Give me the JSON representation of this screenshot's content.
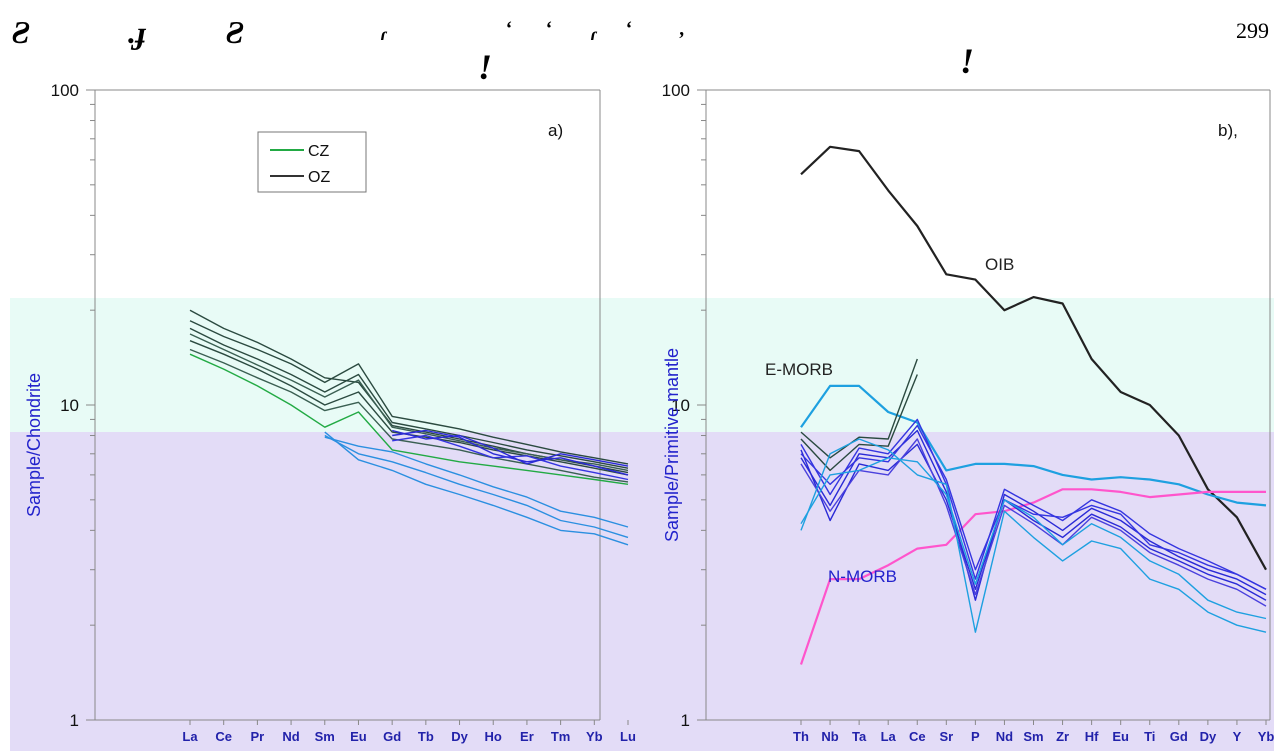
{
  "header": {
    "page_number": "299",
    "marks": [
      "Ƨ",
      ".ɟ",
      "Ƨ",
      "ɾ",
      "ʻ",
      "ʻ",
      "ɾ",
      "ʻ",
      ",",
      "ǃ",
      "ǃ"
    ]
  },
  "bands": {
    "cyan": "#e8fbf6",
    "lilac": "#e3dcf7"
  },
  "chart_data": [
    {
      "panel_label": "a)",
      "type": "line",
      "scale": "log",
      "ylim": [
        1,
        100
      ],
      "ytick_labels": [
        "100",
        "10",
        "1"
      ],
      "ylabel": "Sample/Chondrite",
      "categories": [
        "La",
        "Ce",
        "Pr",
        "Nd",
        "Sm",
        "Eu",
        "Gd",
        "Tb",
        "Dy",
        "Ho",
        "Er",
        "Tm",
        "Yb",
        "Lu"
      ],
      "legend": [
        {
          "label": "CZ",
          "color": "#22aa44"
        },
        {
          "label": "OZ",
          "color": "#333333"
        }
      ],
      "series": [
        {
          "group": "CZ",
          "color": "#22aa44",
          "values": [
            14.5,
            13.0,
            11.5,
            10.0,
            8.5,
            9.5,
            7.2,
            6.9,
            6.6,
            6.4,
            6.2,
            6.0,
            5.8,
            5.6
          ]
        },
        {
          "group": "OZ",
          "color": "#2b4a40",
          "values": [
            16.0,
            14.5,
            13.0,
            11.5,
            10.0,
            11.0,
            8.2,
            7.9,
            7.6,
            7.2,
            6.9,
            6.6,
            6.3,
            6.0
          ]
        },
        {
          "group": "OZ",
          "color": "#2b4a40",
          "values": [
            17.5,
            15.5,
            14.0,
            12.5,
            11.0,
            12.5,
            8.8,
            8.4,
            8.0,
            7.6,
            7.2,
            6.9,
            6.6,
            6.3
          ]
        },
        {
          "group": "OZ",
          "color": "#2b4a40",
          "values": [
            18.5,
            16.5,
            15.0,
            13.5,
            11.8,
            13.5,
            9.2,
            8.8,
            8.4,
            7.9,
            7.5,
            7.1,
            6.8,
            6.5
          ]
        },
        {
          "group": "OZ",
          "color": "#2b4a40",
          "values": [
            20.0,
            17.5,
            15.8,
            14.0,
            12.2,
            11.8,
            8.6,
            8.2,
            7.8,
            7.4,
            7.0,
            6.7,
            6.4,
            6.1
          ]
        },
        {
          "group": "OZ",
          "color": "#3a5f52",
          "values": [
            15.0,
            13.6,
            12.2,
            11.0,
            9.6,
            10.2,
            7.8,
            7.5,
            7.2,
            6.8,
            6.5,
            6.2,
            5.9,
            5.7
          ]
        },
        {
          "group": "OZ",
          "color": "#3a5f52",
          "values": [
            16.8,
            15.0,
            13.4,
            12.0,
            10.6,
            12.0,
            8.5,
            8.1,
            7.7,
            7.3,
            7.0,
            6.7,
            6.5,
            6.2
          ]
        },
        {
          "group": "OZ",
          "color": "#2a2ad6",
          "values": [
            null,
            null,
            null,
            null,
            null,
            null,
            8.0,
            8.3,
            7.9,
            7.0,
            6.6,
            6.8,
            6.4,
            6.0
          ]
        },
        {
          "group": "OZ",
          "color": "#3535e0",
          "values": [
            null,
            null,
            null,
            null,
            null,
            null,
            7.7,
            8.0,
            7.4,
            6.8,
            6.9,
            6.4,
            6.1,
            5.8
          ]
        },
        {
          "group": "OZ",
          "color": "#2a2ad6",
          "values": [
            null,
            null,
            null,
            null,
            null,
            null,
            8.3,
            7.8,
            8.0,
            7.3,
            6.5,
            7.0,
            6.7,
            6.4
          ]
        },
        {
          "group": "OZ",
          "color": "#2b8fe0",
          "values": [
            null,
            null,
            null,
            null,
            7.9,
            7.4,
            7.1,
            6.5,
            6.0,
            5.5,
            5.1,
            4.6,
            4.4,
            4.1
          ]
        },
        {
          "group": "OZ",
          "color": "#2b8fe0",
          "values": [
            null,
            null,
            null,
            null,
            8.0,
            7.0,
            6.6,
            6.1,
            5.6,
            5.2,
            4.8,
            4.3,
            4.1,
            3.8
          ]
        },
        {
          "group": "OZ",
          "color": "#2b8fe0",
          "values": [
            null,
            null,
            null,
            null,
            8.2,
            6.7,
            6.2,
            5.6,
            5.2,
            4.8,
            4.4,
            4.0,
            3.9,
            3.6
          ]
        }
      ]
    },
    {
      "panel_label": "b),",
      "type": "line",
      "scale": "log",
      "ylim": [
        1,
        100
      ],
      "ytick_labels": [
        "100",
        "10",
        "1"
      ],
      "ylabel": "Sample/Primitive mantle",
      "categories": [
        "Th",
        "Nb",
        "Ta",
        "La",
        "Ce",
        "Sr",
        "P",
        "Nd",
        "Sm",
        "Zr",
        "Hf",
        "Eu",
        "Ti",
        "Gd",
        "Dy",
        "Y",
        "Yb"
      ],
      "annotations": [
        {
          "text": "OIB",
          "color": "#222222"
        },
        {
          "text": "E-MORB",
          "color": "#222222"
        },
        {
          "text": "N-MORB",
          "color": "#2222cc"
        }
      ],
      "series": [
        {
          "name": "OIB",
          "color": "#222222",
          "values": [
            54,
            66,
            64,
            48,
            37,
            26,
            25,
            20,
            22,
            21,
            14,
            11,
            10,
            8.0,
            5.4,
            4.4,
            3.0
          ]
        },
        {
          "name": "E-MORB",
          "color": "#1ea0e0",
          "values": [
            8.5,
            11.5,
            11.5,
            9.5,
            8.8,
            6.2,
            6.5,
            6.5,
            6.4,
            6.0,
            5.8,
            5.9,
            5.8,
            5.6,
            5.2,
            4.9,
            4.8
          ]
        },
        {
          "name": "N-MORB",
          "color": "#ff55cc",
          "values": [
            1.5,
            2.8,
            2.8,
            3.1,
            3.5,
            3.6,
            4.5,
            4.6,
            4.9,
            5.4,
            5.4,
            5.3,
            5.1,
            5.2,
            5.3,
            5.3,
            5.3
          ]
        },
        {
          "color": "#2a2ad6",
          "values": [
            7.2,
            4.3,
            6.5,
            6.2,
            7.5,
            5.0,
            2.6,
            5.0,
            4.3,
            3.8,
            4.5,
            4.1,
            3.5,
            3.2,
            2.9,
            2.7,
            2.4
          ]
        },
        {
          "color": "#2a2ad6",
          "values": [
            6.8,
            4.8,
            7.0,
            6.8,
            8.3,
            5.3,
            2.4,
            5.2,
            4.6,
            4.0,
            4.7,
            4.3,
            3.7,
            3.3,
            3.0,
            2.8,
            2.5
          ]
        },
        {
          "color": "#3535e0",
          "values": [
            7.5,
            5.2,
            7.3,
            7.0,
            9.0,
            5.6,
            2.8,
            5.4,
            4.8,
            4.3,
            5.0,
            4.6,
            3.9,
            3.5,
            3.2,
            2.9,
            2.6
          ]
        },
        {
          "color": "#3535e0",
          "values": [
            7.0,
            5.6,
            6.8,
            6.6,
            8.6,
            5.8,
            3.0,
            5.0,
            4.5,
            4.4,
            4.8,
            4.5,
            3.6,
            3.4,
            3.1,
            2.9,
            2.6
          ]
        },
        {
          "color": "#4a40dd",
          "values": [
            6.5,
            4.6,
            6.2,
            6.0,
            7.8,
            4.8,
            2.5,
            4.8,
            4.2,
            3.6,
            4.4,
            4.0,
            3.4,
            3.1,
            2.8,
            2.6,
            2.3
          ]
        },
        {
          "color": "#2b4a40",
          "values": [
            8.2,
            6.8,
            7.9,
            7.8,
            14.0,
            null,
            null,
            null,
            null,
            null,
            null,
            null,
            null,
            null,
            null,
            null,
            null
          ]
        },
        {
          "color": "#2b4a40",
          "values": [
            7.8,
            6.2,
            7.5,
            7.4,
            12.5,
            null,
            null,
            null,
            null,
            null,
            null,
            null,
            null,
            null,
            null,
            null,
            null
          ]
        },
        {
          "color": "#1ea0e0",
          "values": [
            4.0,
            7.0,
            7.8,
            7.2,
            6.0,
            5.6,
            1.9,
            4.6,
            3.8,
            3.2,
            3.7,
            3.5,
            2.8,
            2.6,
            2.2,
            2.0,
            1.9
          ]
        },
        {
          "color": "#1ea0e0",
          "values": [
            4.2,
            6.0,
            6.2,
            6.8,
            6.6,
            5.2,
            2.7,
            5.0,
            4.4,
            3.6,
            4.2,
            3.8,
            3.2,
            2.9,
            2.4,
            2.2,
            2.1
          ]
        }
      ]
    }
  ]
}
